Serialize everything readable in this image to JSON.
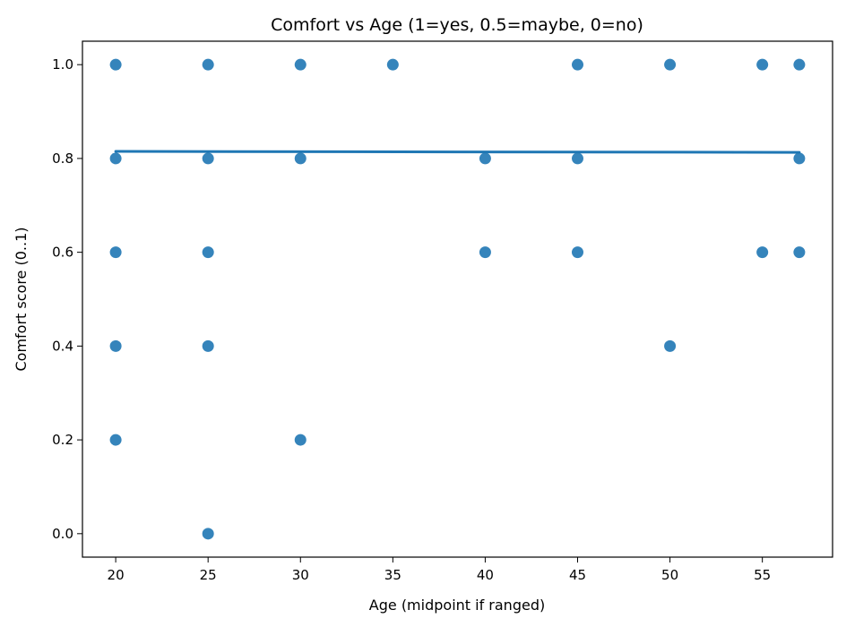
{
  "chart_data": {
    "type": "scatter",
    "title": "Comfort vs Age (1=yes, 0.5=maybe, 0=no)",
    "xlabel": "Age (midpoint if ranged)",
    "ylabel": "Comfort score (0..1)",
    "xlim": [
      18.2,
      58.8
    ],
    "ylim": [
      -0.05,
      1.05
    ],
    "x_ticks": [
      20,
      25,
      30,
      35,
      40,
      45,
      50,
      55
    ],
    "y_ticks": [
      "0.0",
      "0.2",
      "0.4",
      "0.6",
      "0.8",
      "1.0"
    ],
    "grid": false,
    "points": [
      {
        "x": 20,
        "y": 1.0
      },
      {
        "x": 20,
        "y": 0.8
      },
      {
        "x": 20,
        "y": 0.6
      },
      {
        "x": 20,
        "y": 0.4
      },
      {
        "x": 20,
        "y": 0.2
      },
      {
        "x": 25,
        "y": 1.0
      },
      {
        "x": 25,
        "y": 0.8
      },
      {
        "x": 25,
        "y": 0.6
      },
      {
        "x": 25,
        "y": 0.4
      },
      {
        "x": 25,
        "y": 0.0
      },
      {
        "x": 30,
        "y": 1.0
      },
      {
        "x": 30,
        "y": 0.8
      },
      {
        "x": 30,
        "y": 0.2
      },
      {
        "x": 35,
        "y": 1.0
      },
      {
        "x": 40,
        "y": 0.8
      },
      {
        "x": 40,
        "y": 0.6
      },
      {
        "x": 45,
        "y": 1.0
      },
      {
        "x": 45,
        "y": 0.8
      },
      {
        "x": 45,
        "y": 0.6
      },
      {
        "x": 50,
        "y": 1.0
      },
      {
        "x": 50,
        "y": 0.4
      },
      {
        "x": 55,
        "y": 1.0
      },
      {
        "x": 55,
        "y": 0.6
      },
      {
        "x": 57,
        "y": 1.0
      },
      {
        "x": 57,
        "y": 0.8
      },
      {
        "x": 57,
        "y": 0.6
      }
    ],
    "trend_line": {
      "x": [
        20,
        57
      ],
      "y": [
        0.815,
        0.813
      ]
    },
    "colors": {
      "points": "#1f77b4",
      "trend": "#1f77b4",
      "axes": "#000000"
    }
  }
}
